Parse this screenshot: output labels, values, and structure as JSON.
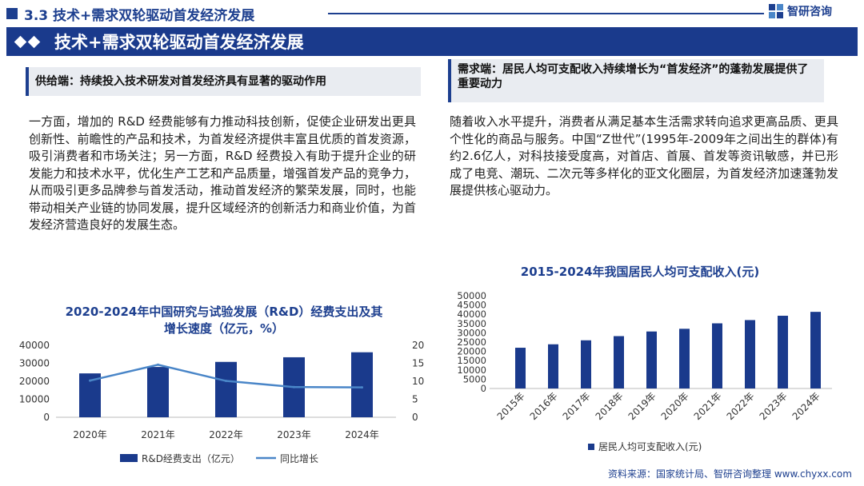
{
  "header": {
    "section_title": "3.3 技术+需求双轮驱动首发经济发展",
    "brand": "智研咨询"
  },
  "banner": {
    "title": "技术+需求双轮驱动首发经济发展"
  },
  "left": {
    "heading": "供给端：持续投入技术研发对首发经济具有显著的驱动作用",
    "paragraph": "一方面，增加的 R&D 经费能够有力推动科技创新，促使企业研发出更具创新性、前瞻性的产品和技术，为首发经济提供丰富且优质的首发资源，吸引消费者和市场关注；另一方面，R&D 经费投入有助于提升企业的研发能力和技术水平，优化生产工艺和产品质量，增强首发产品的竞争力，从而吸引更多品牌参与首发活动，推动首发经济的繁荣发展，同时，也能带动相关产业链的协同发展，提升区域经济的创新活力和商业价值，为首发经济营造良好的发展生态。"
  },
  "right": {
    "heading": "需求端：居民人均可支配收入持续增长为“首发经济”的蓬勃发展提供了重要动力",
    "paragraph": "随着收入水平提升，消费者从满足基本生活需求转向追求更高品质、更具个性化的商品与服务。中国“Z世代”(1995年-2009年之间出生的群体)有约2.6亿人，对科技接受度高，对首店、首展、首发等资讯敏感，并已形成了电竞、潮玩、二次元等多样化的亚文化圈层，为首发经济加速蓬勃发展提供核心驱动力。"
  },
  "source": "资料来源：国家统计局、智研咨询整理 www.chyxx.com",
  "colors": {
    "brand": "#1d3f8f",
    "bar": "#1a3a8c",
    "line": "#4a86c8"
  },
  "chart_data": [
    {
      "type": "bar",
      "title": "2020-2024年中国研究与试验发展（R&D）经费支出及其增长速度（亿元，%）",
      "categories": [
        "2020年",
        "2021年",
        "2022年",
        "2023年",
        "2024年"
      ],
      "series": [
        {
          "name": "R&D经费支出（亿元）",
          "type": "bar",
          "axis": "left",
          "values": [
            24393,
            27956,
            30783,
            33357,
            36130
          ]
        },
        {
          "name": "同比增长",
          "type": "line",
          "axis": "right",
          "values": [
            10.2,
            14.6,
            10.1,
            8.4,
            8.3
          ]
        }
      ],
      "ylim": [
        0,
        40000
      ],
      "yticks": [
        "40000",
        "30000",
        "20000",
        "10000",
        "0"
      ],
      "y2lim": [
        0,
        20
      ],
      "y2ticks": [
        "20",
        "15",
        "10",
        "5",
        "0"
      ],
      "legend": "bottom"
    },
    {
      "type": "bar",
      "title": "2015-2024年我国居民人均可支配收入(元)",
      "categories": [
        "2015年",
        "2016年",
        "2017年",
        "2018年",
        "2019年",
        "2020年",
        "2021年",
        "2022年",
        "2023年",
        "2024年"
      ],
      "series": [
        {
          "name": "居民人均可支配收入(元)",
          "values": [
            21966,
            23821,
            25974,
            28228,
            30733,
            32189,
            35128,
            36883,
            39218,
            41314
          ]
        }
      ],
      "ylim": [
        0,
        50000
      ],
      "yticks": [
        "50000",
        "45000",
        "40000",
        "35000",
        "30000",
        "25000",
        "20000",
        "15000",
        "10000",
        "5000",
        "0"
      ],
      "legend": "bottom"
    }
  ]
}
